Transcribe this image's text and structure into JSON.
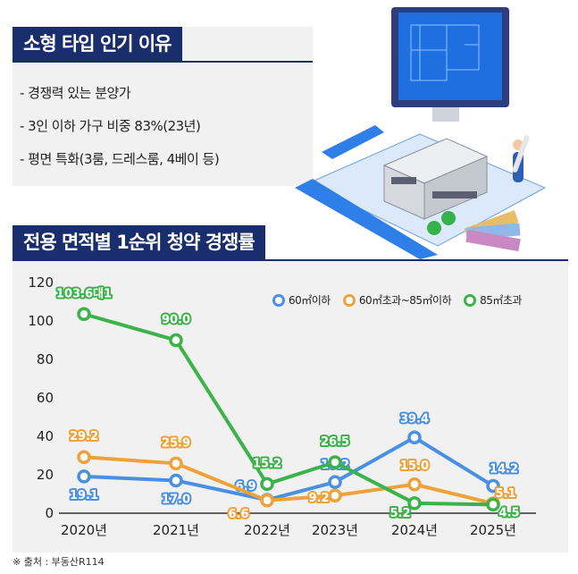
{
  "top_section": {
    "heading": "소형 타입 인기 이유",
    "bullets": [
      "- 경쟁력 있는 분양가",
      "- 3인 이하 가구 비중 83%(23년)",
      "- 평면 특화(3룸, 드레스룸, 4베이 등)"
    ]
  },
  "chart_section": {
    "heading": "전용 면적별 1순위 청약 경쟁률"
  },
  "source": "※ 출처 : 부동산R114",
  "colors": {
    "navy": "#1a2e6e",
    "blue": "#4a90e2",
    "orange": "#f0a23a",
    "green": "#3cb34a"
  },
  "chart_data": {
    "type": "line",
    "categories": [
      "2020년",
      "2021년",
      "2022년",
      "2023년",
      "2024년",
      "2025년"
    ],
    "series": [
      {
        "name": "60㎡이하",
        "color": "#4a90e2",
        "values": [
          19.1,
          17.0,
          6.9,
          16.2,
          39.4,
          14.2
        ],
        "labels": [
          "19.1",
          "17.0",
          "6.9",
          "16.2",
          "39.4",
          "14.2"
        ]
      },
      {
        "name": "60㎡초과~85㎡이하",
        "color": "#f0a23a",
        "values": [
          29.2,
          25.9,
          6.6,
          9.2,
          15.0,
          5.1
        ],
        "labels": [
          "29.2",
          "25.9",
          "6.6",
          "9.2",
          "15.0",
          "5.1"
        ]
      },
      {
        "name": "85㎡초과",
        "color": "#3cb34a",
        "values": [
          103.6,
          90.0,
          15.2,
          26.5,
          5.2,
          4.5
        ],
        "labels": [
          "103.6대1",
          "90.0",
          "15.2",
          "26.5",
          "5.2",
          "4.5"
        ]
      }
    ],
    "ylim": [
      0,
      120
    ],
    "yticks": [
      0,
      20,
      40,
      60,
      80,
      100,
      120
    ],
    "legend": "top-right",
    "grid": false
  }
}
